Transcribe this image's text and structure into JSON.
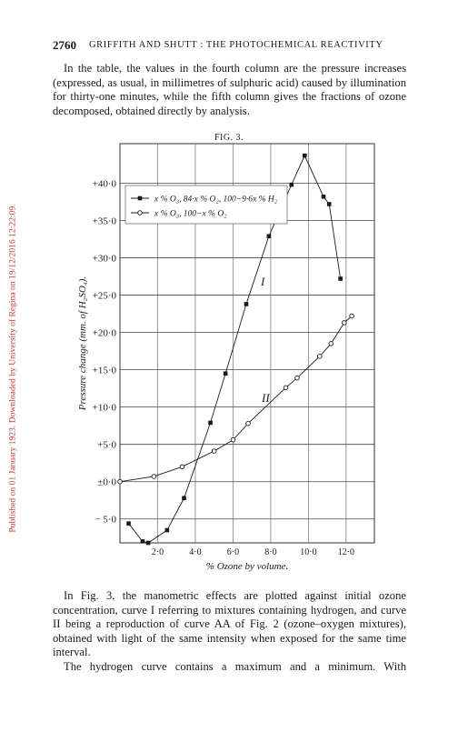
{
  "header": {
    "page_number": "2760",
    "running_title": "GRIFFITH AND SHUTT : THE PHOTOCHEMICAL REACTIVITY"
  },
  "side_note": "Published on 01 January 1923. Downloaded by University of Regina on 19/12/2016 12:22:09.",
  "paragraphs": [
    "In the table, the values in the fourth column are the pressure increases (expressed, as usual, in millimetres of sulphuric acid) caused by illumination for thirty-one minutes, while the fifth column gives the fractions of ozone decomposed, obtained directly by analysis.",
    "In Fig. 3, the manometric effects are plotted against initial ozone concentration, curve I referring to mixtures containing hydrogen, and curve II being a reproduction of curve AA of Fig. 2 (ozone–oxygen mixtures), obtained with light of the same intensity when exposed for the same time interval.",
    "The hydrogen curve contains a maximum and a minimum. With"
  ],
  "figure_label": "FIG. 3.",
  "chart_data": {
    "type": "line",
    "x_label": "% Ozone by volume.",
    "y_label": "Pressure change (mm. of H₂SO₄).",
    "annotations": [
      "I",
      "II"
    ],
    "xlim": [
      0,
      13.5
    ],
    "ylim": [
      -8.2,
      45.3
    ],
    "xticks": [
      {
        "value": 2,
        "label": "2·0"
      },
      {
        "value": 4,
        "label": "4·0"
      },
      {
        "value": 6,
        "label": "6·0"
      },
      {
        "value": 8,
        "label": "8·0"
      },
      {
        "value": 10,
        "label": "10·0"
      },
      {
        "value": 12,
        "label": "12·0"
      }
    ],
    "yticks": [
      {
        "value": -5,
        "label": "− 5·0"
      },
      {
        "value": 0,
        "label": "±0·0"
      },
      {
        "value": 5,
        "label": "+5·0"
      },
      {
        "value": 10,
        "label": "+10·0"
      },
      {
        "value": 15,
        "label": "+15·0"
      },
      {
        "value": 20,
        "label": "+20·0"
      },
      {
        "value": 25,
        "label": "+25·0"
      },
      {
        "value": 30,
        "label": "+30·0"
      },
      {
        "value": 35,
        "label": "+35·0"
      },
      {
        "value": 40,
        "label": "+40·0"
      }
    ],
    "grid": true,
    "series": [
      {
        "name": "x % O₃, 84·x % O₂, 100−9·6x % H₂",
        "marker": "square",
        "color": "#1a1a1a",
        "x": [
          0.46,
          1.2,
          1.5,
          2.5,
          3.4,
          4.8,
          5.6,
          6.7,
          7.9,
          9.1,
          9.8,
          10.8,
          11.1,
          11.7
        ],
        "values": [
          -5.6,
          -8.0,
          -8.2,
          -6.5,
          -2.2,
          7.9,
          14.5,
          23.8,
          32.9,
          39.8,
          43.7,
          38.2,
          37.2,
          27.2
        ]
      },
      {
        "name": "x % O₃, 100−x % O₂",
        "marker": "circle",
        "color": "#1a1a1a",
        "x": [
          0,
          1.8,
          3.3,
          5.0,
          6.0,
          6.8,
          8.8,
          9.4,
          10.6,
          11.2,
          11.9,
          12.3
        ],
        "values": [
          0,
          0.7,
          2.0,
          4.1,
          5.6,
          7.8,
          12.6,
          13.9,
          16.8,
          18.5,
          21.3,
          22.2
        ]
      }
    ]
  }
}
